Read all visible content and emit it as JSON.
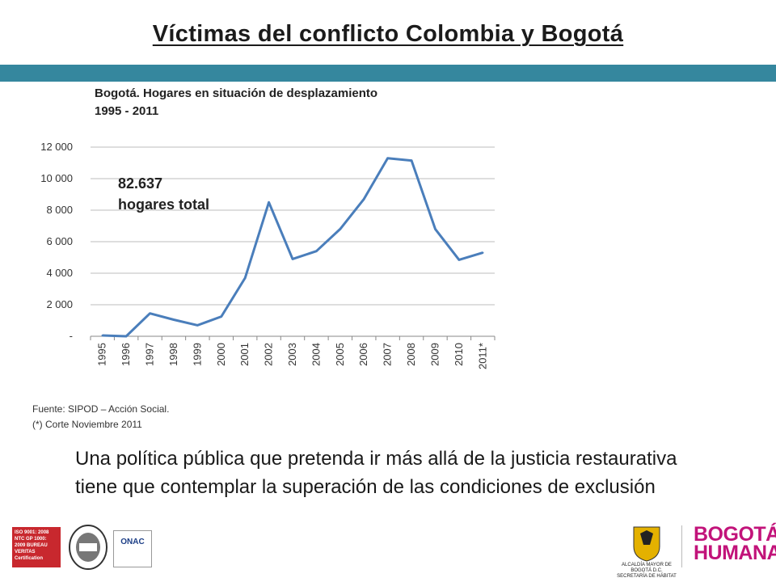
{
  "slide": {
    "title": "Víctimas del conflicto Colombia y Bogotá",
    "bar_color": "#35879e"
  },
  "chart_title": {
    "line1": "Bogotá. Hogares  en situación de desplazamiento",
    "line2": "1995 - 2011"
  },
  "annotation": {
    "value": "82.637",
    "label": "hogares total"
  },
  "source": {
    "line1": "Fuente: SIPOD – Acción Social.",
    "line2": "(*) Corte Noviembre 2011"
  },
  "body_text": "Una política pública que pretenda ir más allá de la justicia restaurativa tiene que contemplar la superación de las condiciones de exclusión",
  "logos": {
    "iso_text": "ISO 9001: 2008 NTC GP 1000: 2009 BUREAU VERITAS Certification",
    "onac": "ONAC",
    "alcaldia": "ALCALDÍA MAYOR DE BOGOTÁ D.C.",
    "secretaria": "SECRETARÍA DE HÁBITAT",
    "brand_line1": "BOGOTÁ",
    "brand_line2": "HUMANA",
    "brand_color": "#c2137a"
  },
  "chart_data": {
    "type": "line",
    "categories": [
      "1995",
      "1996",
      "1997",
      "1998",
      "1999",
      "2000",
      "2001",
      "2002",
      "2003",
      "2004",
      "2005",
      "2006",
      "2007",
      "2008",
      "2009",
      "2010",
      "2011*"
    ],
    "series": [
      {
        "values": [
          50,
          0,
          1450,
          1050,
          700,
          1250,
          3700,
          8500,
          4900,
          5400,
          6800,
          8700,
          11300,
          11150,
          6800,
          4850,
          5300
        ],
        "color": "#4a7ebb"
      }
    ],
    "ylim": [
      0,
      12000
    ],
    "yticks": [
      0,
      2000,
      4000,
      6000,
      8000,
      10000,
      12000
    ],
    "ytick_labels": [
      "-",
      "2 000",
      "4 000",
      "6 000",
      "8 000",
      "10 000",
      "12 000"
    ],
    "grid": true
  }
}
